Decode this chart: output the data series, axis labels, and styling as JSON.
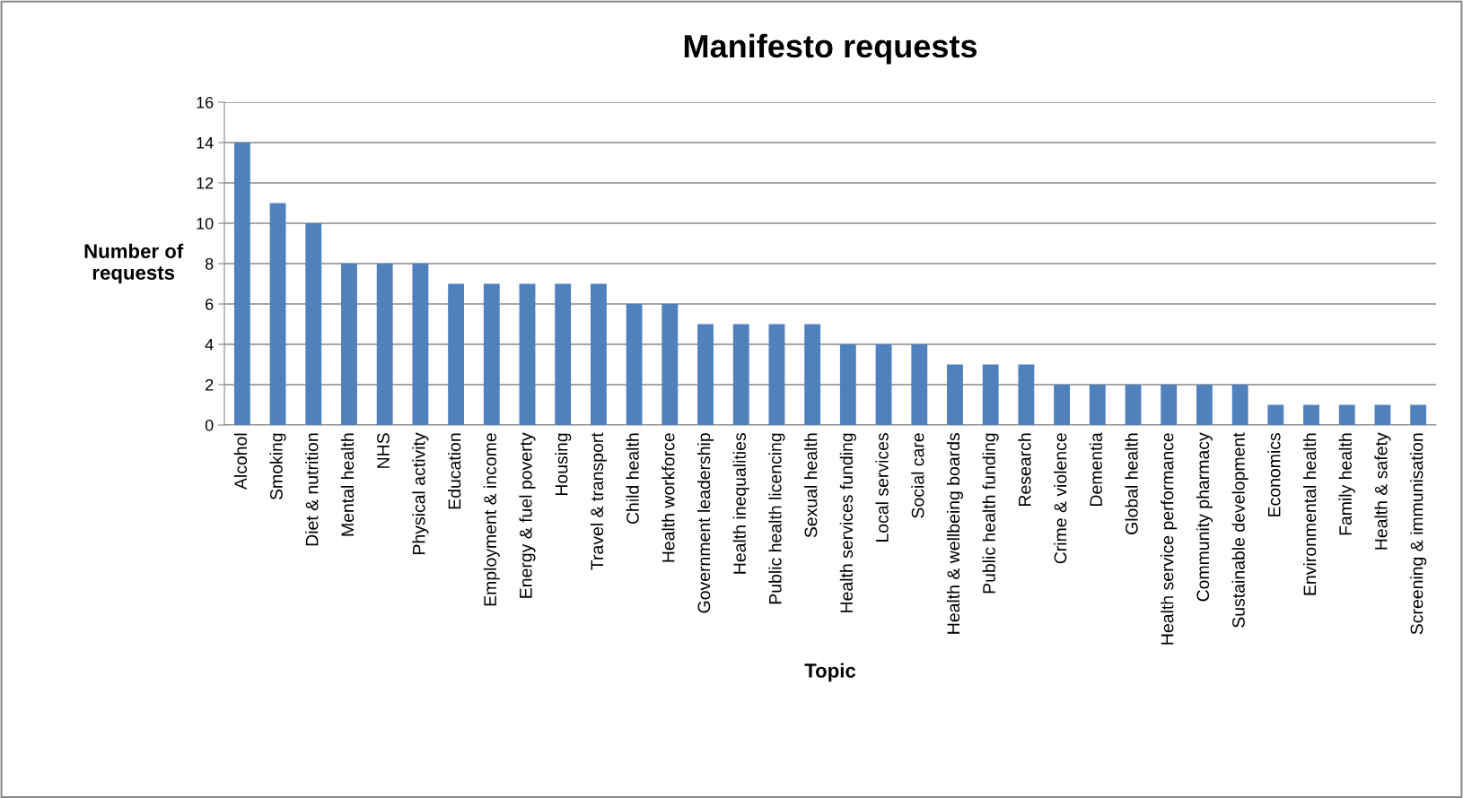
{
  "chart_data": {
    "type": "bar",
    "title": "Manifesto requests",
    "xlabel": "Topic",
    "ylabel": "Number of\nrequests",
    "categories": [
      "Alcohol",
      "Smoking",
      "Diet & nutrition",
      "Mental health",
      "NHS",
      "Physical activity",
      "Education",
      "Employment & income",
      "Energy & fuel poverty",
      "Housing",
      "Travel & transport",
      "Child health",
      "Health workforce",
      "Government leadership",
      "Health inequalities",
      "Public health licencing",
      "Sexual health",
      "Health services funding",
      "Local services",
      "Social care",
      "Health & wellbeing boards",
      "Public health funding",
      "Research",
      "Crime & violence",
      "Dementia",
      "Global health",
      "Health service performance",
      "Community pharmacy",
      "Sustainable development",
      "Economics",
      "Environmental health",
      "Family health",
      "Health & safety",
      "Screening & immunisation"
    ],
    "values": [
      14,
      11,
      10,
      8,
      8,
      8,
      7,
      7,
      7,
      7,
      7,
      6,
      6,
      5,
      5,
      5,
      5,
      4,
      4,
      4,
      3,
      3,
      3,
      2,
      2,
      2,
      2,
      2,
      2,
      1,
      1,
      1,
      1,
      1
    ],
    "color": "#4f81bd",
    "ylim": [
      0,
      16
    ],
    "yticks": [
      0,
      2,
      4,
      6,
      8,
      10,
      12,
      14,
      16
    ],
    "grid": "y",
    "legend": false
  }
}
